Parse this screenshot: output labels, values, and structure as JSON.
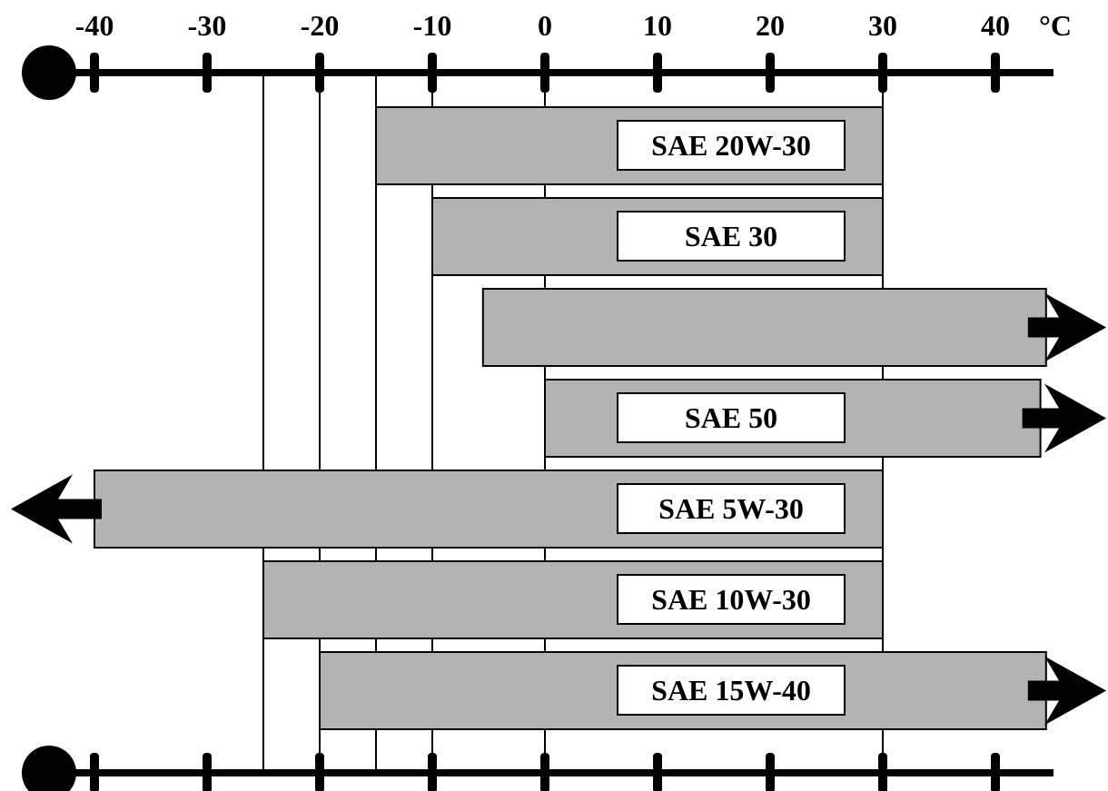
{
  "chart_data": {
    "type": "bar",
    "orientation": "horizontal",
    "unit_label": "°C",
    "x_ticks": [
      -40,
      -30,
      -20,
      -10,
      0,
      10,
      20,
      30,
      40
    ],
    "x_tick_labels": [
      "-40",
      "-30",
      "-20",
      "-10",
      "0",
      "10",
      "20",
      "30",
      "40"
    ],
    "xlim": [
      -40,
      40
    ],
    "reference_lines": [
      -25,
      -20,
      -15,
      -10,
      0,
      30
    ],
    "bars": [
      {
        "label": "SAE 20W-30",
        "start": -15,
        "end": 30,
        "extends_left": false,
        "extends_right": false
      },
      {
        "label": "SAE 30",
        "start": -10,
        "end": 30,
        "extends_left": false,
        "extends_right": false
      },
      {
        "label": "",
        "start": -5.5,
        "end": 44.5,
        "extends_left": false,
        "extends_right": true
      },
      {
        "label": "SAE 50",
        "start": 0,
        "end": 44,
        "extends_left": false,
        "extends_right": true
      },
      {
        "label": "SAE 5W-30",
        "start": -40,
        "end": 30,
        "extends_left": true,
        "extends_right": false
      },
      {
        "label": "SAE 10W-30",
        "start": -25,
        "end": 30,
        "extends_left": false,
        "extends_right": false
      },
      {
        "label": "SAE 15W-40",
        "start": -20,
        "end": 44.5,
        "extends_left": false,
        "extends_right": true
      }
    ],
    "colors": {
      "bar_fill": "#b3b3b3",
      "line": "#000000",
      "label_box": "#ffffff"
    }
  }
}
